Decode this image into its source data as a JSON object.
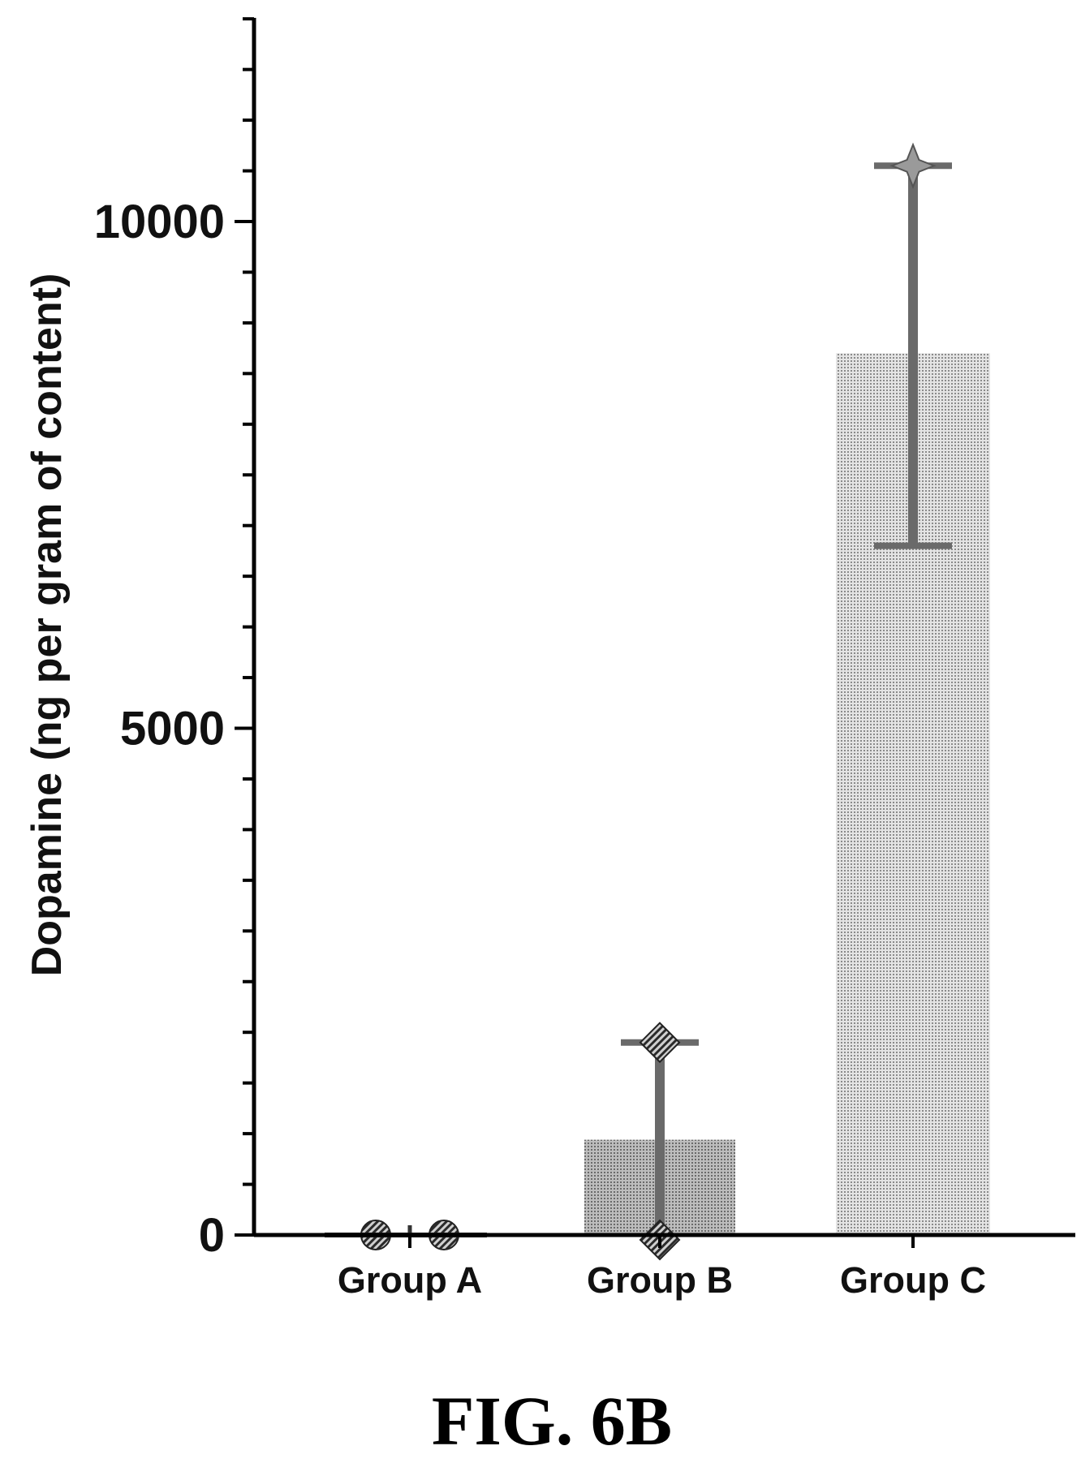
{
  "chart_data": {
    "type": "bar",
    "title": "",
    "xlabel": "",
    "ylabel": "Dopamine (ng per gram of content)",
    "ylim": [
      0,
      12000
    ],
    "y_ticks_major": [
      0,
      5000,
      10000
    ],
    "y_minor_step": 500,
    "grid": false,
    "categories": [
      "Group A",
      "Group B",
      "Group C"
    ],
    "values": [
      0,
      940,
      8700
    ],
    "error_bars": [
      {
        "upper": 0,
        "lower": 0
      },
      {
        "upper": 1900,
        "lower": 0
      },
      {
        "upper": 10550,
        "lower": 6800
      }
    ],
    "points": [
      [
        -10,
        -10
      ],
      [
        -160,
        1900
      ],
      [
        10550,
        10550
      ]
    ],
    "bar_colors": [
      "#a9a9a9",
      "#9a9a9a",
      "#c4c4c4"
    ]
  },
  "caption": "FIG. 6B"
}
